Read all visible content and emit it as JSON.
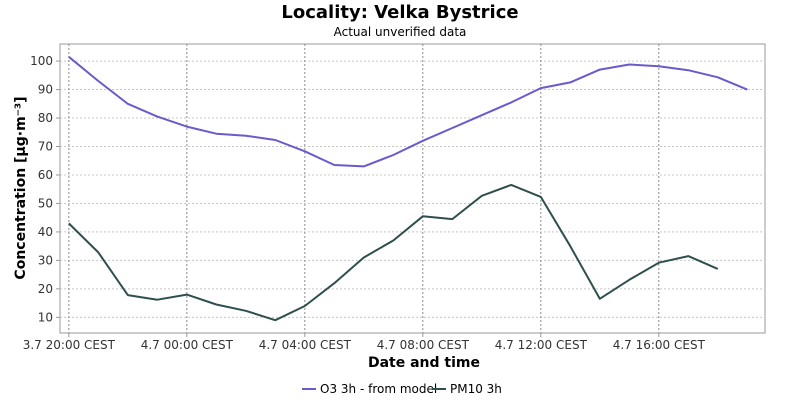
{
  "chart_data": {
    "type": "line",
    "title": "Locality: Velka Bystrice",
    "subtitle": "Actual unverified data",
    "xlabel": "Date and time",
    "ylabel": "Concentration [µg·m⁻³]",
    "ylim": [
      4.5,
      106
    ],
    "xlim": [
      -0.3,
      23.6
    ],
    "grid": true,
    "legend_position": "bottom-center",
    "x_tick_labels": [
      {
        "x": 0,
        "label": "3.7 20:00 CEST"
      },
      {
        "x": 4,
        "label": "4.7 00:00 CEST"
      },
      {
        "x": 8,
        "label": "4.7 04:00 CEST"
      },
      {
        "x": 12,
        "label": "4.7 08:00 CEST"
      },
      {
        "x": 16,
        "label": "4.7 12:00 CEST"
      },
      {
        "x": 20,
        "label": "4.7 16:00 CEST"
      }
    ],
    "y_ticks": [
      10,
      20,
      30,
      40,
      50,
      60,
      70,
      80,
      90,
      100
    ],
    "series": [
      {
        "name": "O3 3h - from model",
        "color": "#6a5acd",
        "x": [
          0,
          1,
          2,
          3,
          4,
          5,
          6,
          7,
          8,
          9,
          10,
          11,
          12,
          13,
          14,
          15,
          16,
          17,
          18,
          19,
          20,
          21,
          22,
          23
        ],
        "values": [
          101.5,
          93,
          85,
          80.5,
          77,
          74.5,
          73.8,
          72.3,
          68.3,
          63.5,
          63,
          67,
          72,
          76.5,
          81,
          85.5,
          90.5,
          92.5,
          97,
          98.8,
          98.2,
          96.8,
          94.3,
          90
        ]
      },
      {
        "name": "PM10 3h",
        "color": "#2f4f4f",
        "x": [
          0,
          1,
          2,
          3,
          4,
          5,
          6,
          7,
          8,
          9,
          10,
          11,
          12,
          13,
          14,
          15,
          16,
          17,
          18,
          19,
          20,
          21,
          22
        ],
        "values": [
          43,
          32.8,
          17.8,
          16.2,
          18,
          14.5,
          12.3,
          9,
          14,
          22,
          31,
          37,
          45.5,
          44.5,
          52.7,
          56.5,
          52.3,
          35,
          16.5,
          23.2,
          29.2,
          31.5,
          27
        ]
      }
    ]
  }
}
